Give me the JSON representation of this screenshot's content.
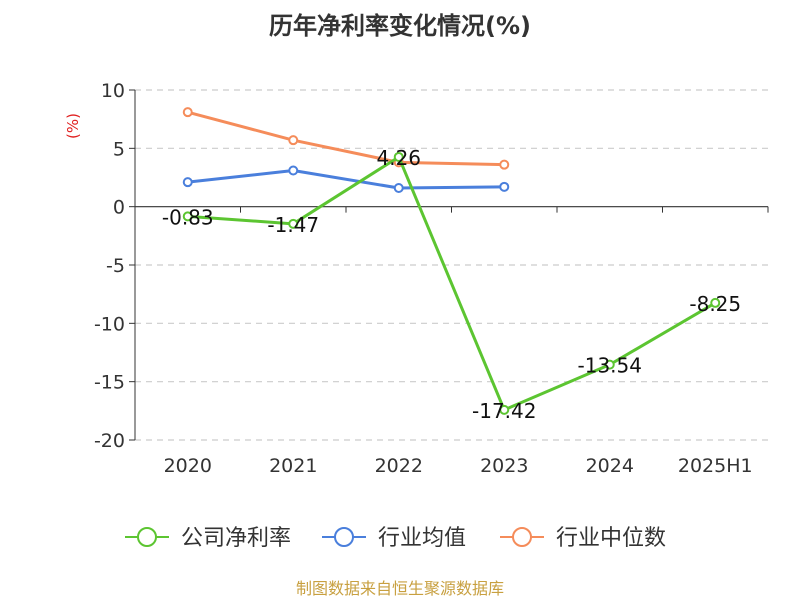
{
  "chart_data": {
    "type": "line",
    "title": "历年净利率变化情况(%)",
    "ylabel": "(%)",
    "xlabel": "",
    "categories": [
      "2020",
      "2021",
      "2022",
      "2023",
      "2024",
      "2025H1"
    ],
    "ylim": [
      -20,
      10
    ],
    "yticks": [
      10,
      5,
      0,
      -5,
      -10,
      -15,
      -20
    ],
    "grid": true,
    "legend_position": "bottom",
    "series": [
      {
        "name": "公司净利率",
        "color": "#5cc531",
        "values": [
          -0.83,
          -1.47,
          4.26,
          -17.42,
          -13.54,
          -8.25
        ],
        "labels": [
          "-0.83",
          "-1.47",
          "4.26",
          "-17.42",
          "-13.54",
          "-8.25"
        ]
      },
      {
        "name": "行业均值",
        "color": "#4a7fdc",
        "values": [
          2.1,
          3.1,
          1.6,
          1.7,
          null,
          null
        ]
      },
      {
        "name": "行业中位数",
        "color": "#f58c5a",
        "values": [
          8.1,
          5.7,
          3.8,
          3.6,
          null,
          null
        ]
      }
    ]
  },
  "footer": {
    "source": "制图数据来自恒生聚源数据库"
  },
  "colors": {
    "ylabel": "#e02020",
    "footer": "#c8a040",
    "grid": "#cccccc",
    "axis": "#333333"
  }
}
